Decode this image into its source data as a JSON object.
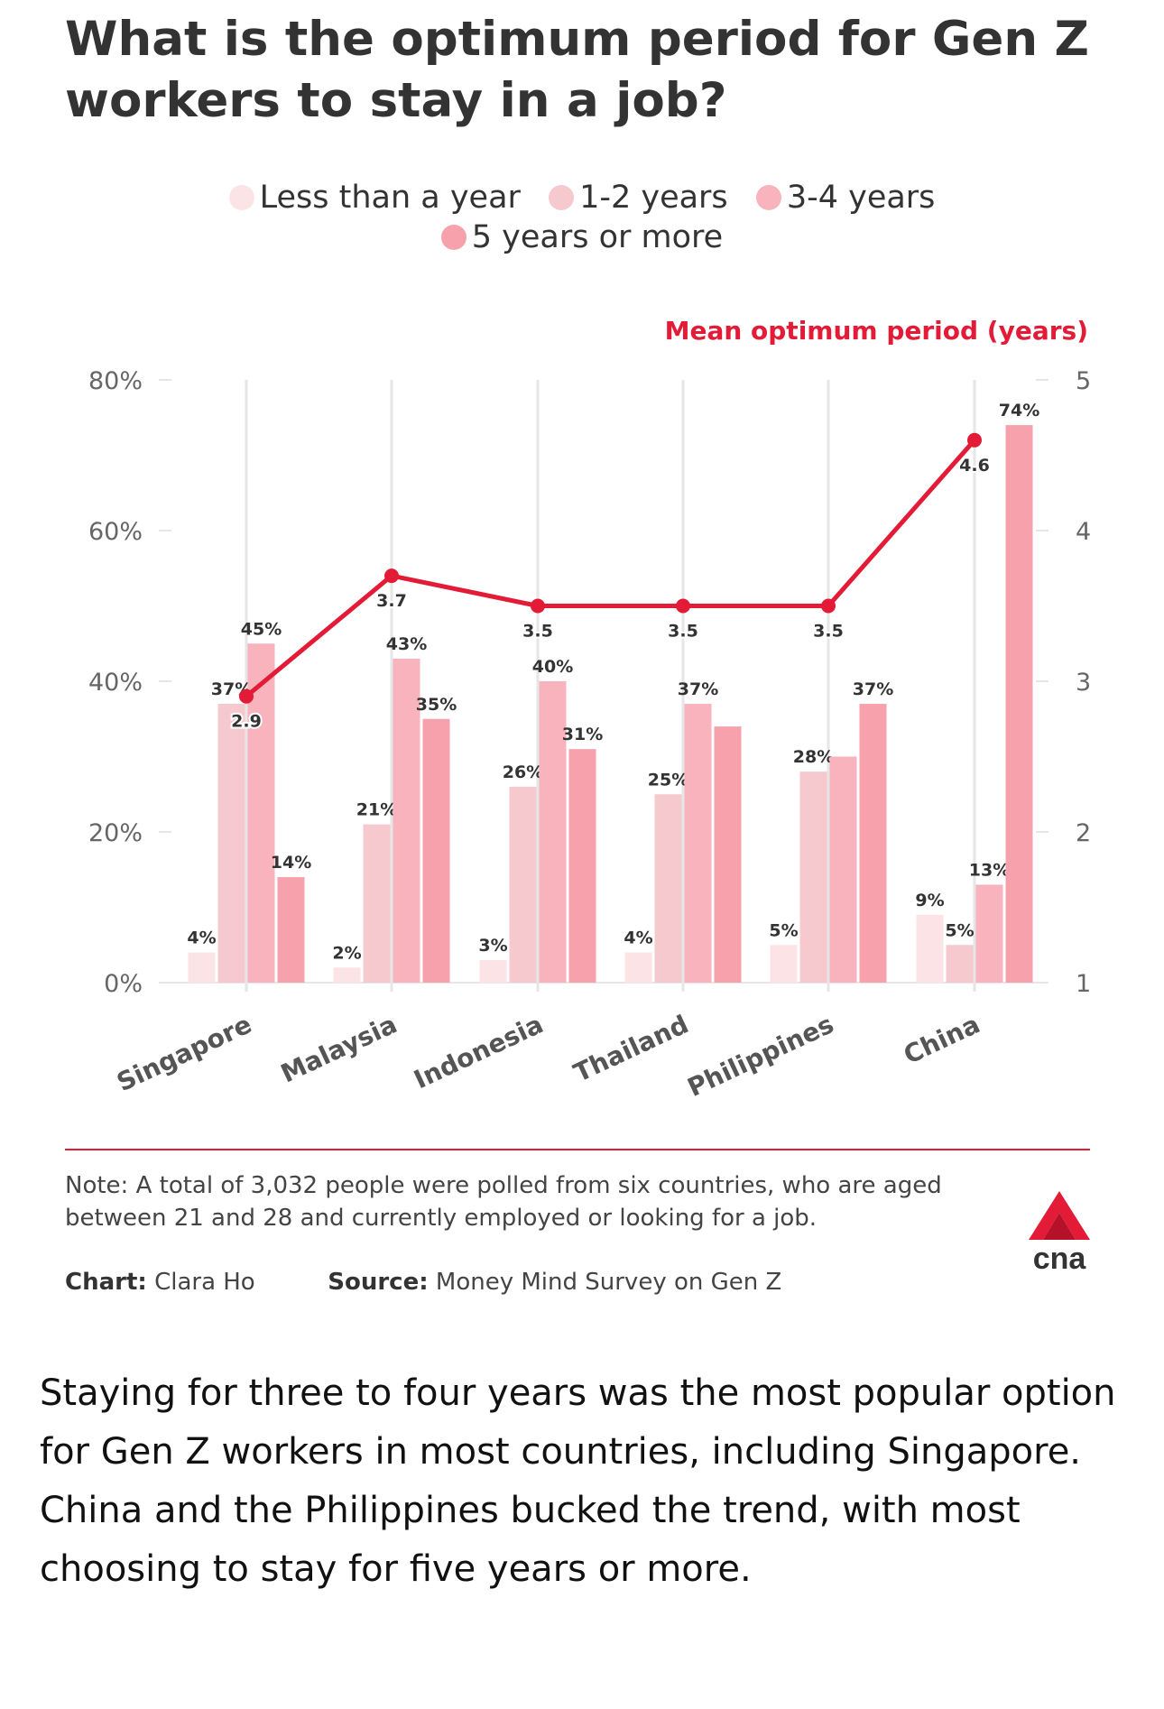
{
  "title": "What is the optimum period for Gen Z workers to stay in a job?",
  "colors": {
    "less_than_year": "#fbe3e6",
    "one_two_years": "#f5c9cd",
    "three_four_years": "#f8b3bc",
    "five_plus_years": "#f6a1ab",
    "mean_line": "#e31b37",
    "gridline": "#e6e6e6"
  },
  "legend": {
    "items": [
      {
        "label": "Less than a year",
        "color": "#fbe3e6"
      },
      {
        "label": "1-2 years",
        "color": "#f5c9cd"
      },
      {
        "label": "3-4 years",
        "color": "#f8b3bc"
      },
      {
        "label": "5 years or more",
        "color": "#f6a1ab"
      }
    ]
  },
  "chart_data": {
    "type": "bar",
    "categories": [
      "Singapore",
      "Malaysia",
      "Indonesia",
      "Thailand",
      "Philippines",
      "China"
    ],
    "series": [
      {
        "name": "Less than a year",
        "values": [
          4,
          2,
          3,
          4,
          5,
          9
        ],
        "labels": [
          "4%",
          "2%",
          "3%",
          "4%",
          "5%",
          "9%"
        ]
      },
      {
        "name": "1-2 years",
        "values": [
          37,
          21,
          26,
          25,
          28,
          5
        ],
        "labels": [
          "37%",
          "21%",
          "26%",
          "25%",
          "28%",
          "5%"
        ]
      },
      {
        "name": "3-4 years",
        "values": [
          45,
          43,
          40,
          37,
          30,
          13
        ],
        "labels": [
          "45%",
          "43%",
          "40%",
          "37%",
          "",
          "13%"
        ]
      },
      {
        "name": "5 years or more",
        "values": [
          14,
          35,
          31,
          34,
          37,
          74
        ],
        "labels": [
          "14%",
          "35%",
          "31%",
          "",
          "37%",
          "74%"
        ]
      }
    ],
    "line": {
      "name": "Mean optimum period (years)",
      "values": [
        2.9,
        3.7,
        3.5,
        3.5,
        3.5,
        4.6
      ],
      "labels": [
        "2.9",
        "3.7",
        "3.5",
        "3.5",
        "3.5",
        "4.6"
      ]
    },
    "ylim": [
      0,
      80
    ],
    "yticks": [
      "0%",
      "20%",
      "40%",
      "60%",
      "80%"
    ],
    "y2lim": [
      1,
      5
    ],
    "y2ticks": [
      "1",
      "2",
      "3",
      "4",
      "5"
    ],
    "y2label": "Mean optimum period (years)",
    "grid": true,
    "legend_position": "top"
  },
  "note": "Note: A total of 3,032 people were polled from six countries, who are aged between 21 and 28 and currently employed or looking for a job.",
  "credits": {
    "chart_label": "Chart:",
    "chart_value": "Clara Ho",
    "source_label": "Source:",
    "source_value": "Money Mind Survey on Gen Z"
  },
  "logo": {
    "text": "cna",
    "icon": "cna-logo-icon"
  },
  "caption": "Staying for three to four years was the most popular option for Gen Z workers in most countries, including Singapore. China and the Philippines bucked the trend, with most choosing to stay for five years or more."
}
